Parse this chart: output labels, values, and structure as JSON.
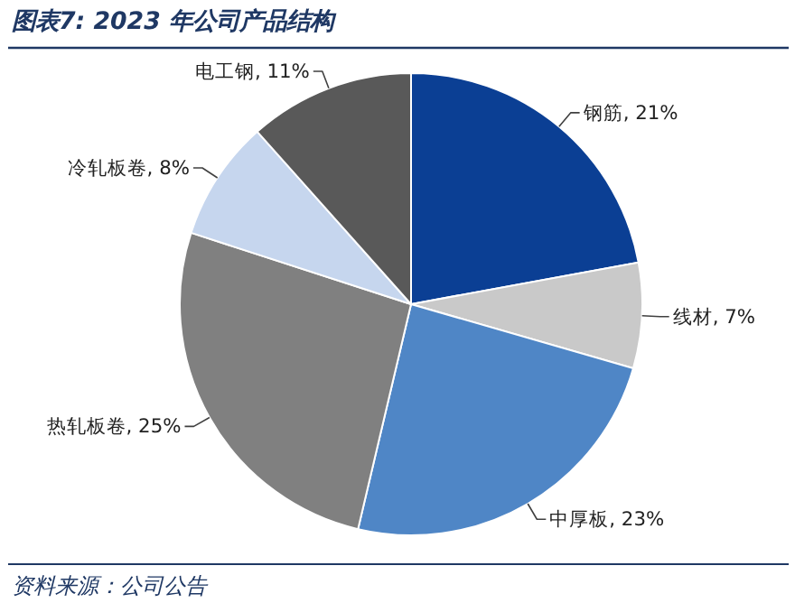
{
  "chart_data": {
    "type": "pie",
    "title": "图表7:  2023 年公司产品结构",
    "categories": [
      "钢筋",
      "线材",
      "中厚板",
      "热轧板卷",
      "冷轧板卷",
      "电工钢"
    ],
    "values": [
      21,
      7,
      23,
      25,
      8,
      11
    ],
    "value_labels": [
      "21%",
      "7%",
      "23%",
      "25%",
      "8%",
      "11%"
    ],
    "colors": [
      "#0b3f94",
      "#c9c9c9",
      "#4f86c6",
      "#808080",
      "#c6d6ee",
      "#595959"
    ],
    "annotations": [
      "资料来源：公司公告"
    ]
  }
}
